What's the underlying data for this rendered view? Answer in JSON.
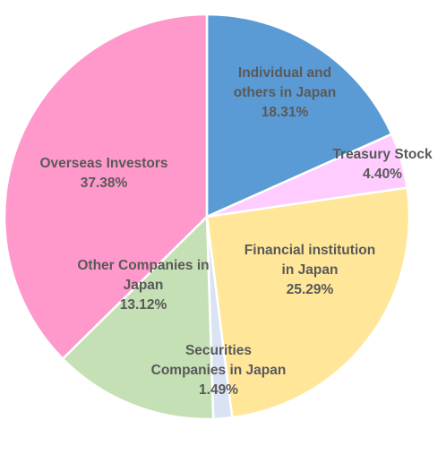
{
  "chart_data": {
    "type": "pie",
    "title": "",
    "legend": "none",
    "start_angle_deg": 0,
    "direction": "clockwise",
    "slices": [
      {
        "label": [
          "Individual and",
          "others in Japan"
        ],
        "value": 18.31,
        "value_label": "18.31%",
        "color": "#5b9bd5"
      },
      {
        "label": [
          "Treasury Stock"
        ],
        "value": 4.4,
        "value_label": "4.40%",
        "color": "#ffccff"
      },
      {
        "label": [
          "Financial institution",
          "in Japan"
        ],
        "value": 25.29,
        "value_label": "25.29%",
        "color": "#ffe699"
      },
      {
        "label": [
          "Securities",
          "Companies in Japan"
        ],
        "value": 1.49,
        "value_label": "1.49%",
        "color": "#dae3f3"
      },
      {
        "label": [
          "Other Companies in",
          "Japan"
        ],
        "value": 13.12,
        "value_label": "13.12%",
        "color": "#c5e0b4"
      },
      {
        "label": [
          "Overseas Investors"
        ],
        "value": 37.38,
        "value_label": "37.38%",
        "color": "#ff99cc"
      }
    ]
  }
}
